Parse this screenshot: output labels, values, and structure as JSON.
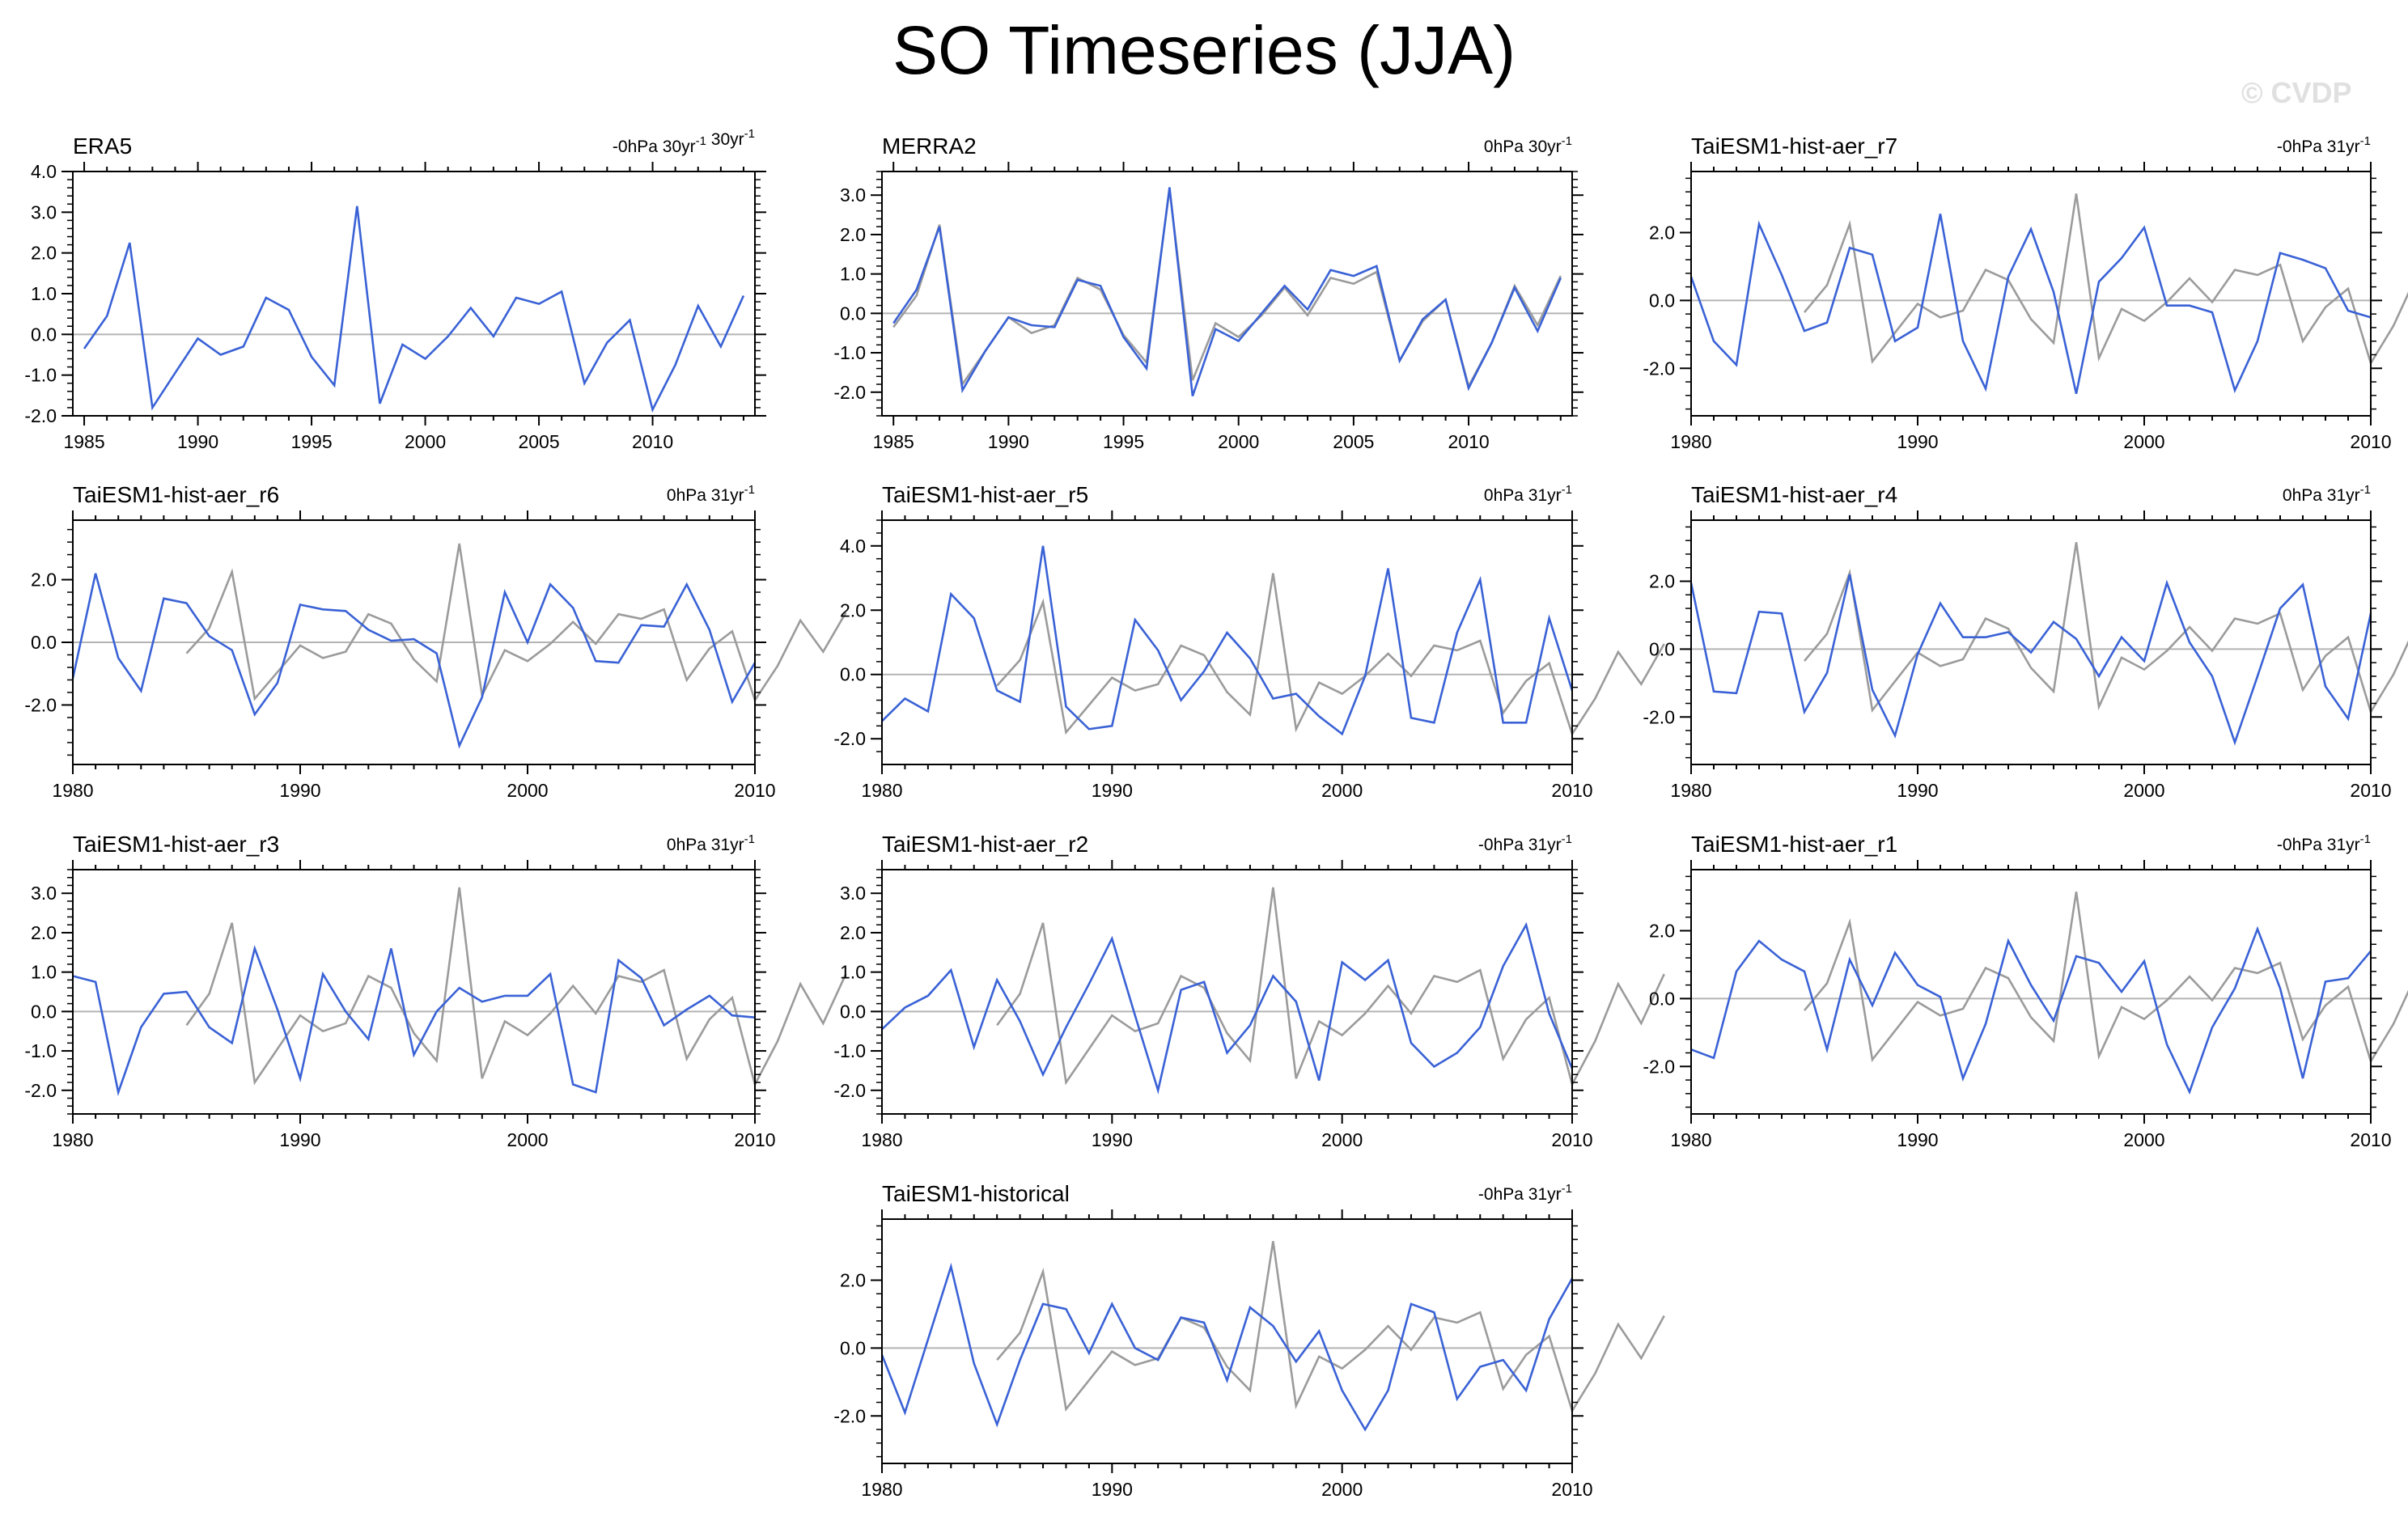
{
  "figure": {
    "title": "SO Timeseries (JJA)",
    "watermark": "© CVDP",
    "colors": {
      "model_line": "#3a62d6",
      "obs_line": "#9b9b9b",
      "zero_line": "#b4b4b4",
      "axis": "#000000"
    }
  },
  "chart_data": [
    {
      "type": "line",
      "title": "ERA5",
      "subtitle": "-0hPa 30yr",
      "subtitle2": "30yr",
      "xlim": [
        1984.5,
        2014.5
      ],
      "ylim": [
        -2.0,
        4.0
      ],
      "xticks": [
        1985,
        1990,
        1995,
        2000,
        2005,
        2010
      ],
      "yticks": [
        -2,
        -1,
        0,
        1,
        2,
        3,
        4
      ],
      "ytick_labels": [
        "-2.0",
        "-1.0",
        "0.0",
        "1.0",
        "2.0",
        "3.0",
        "4.0"
      ],
      "series": [
        {
          "name": "ERA5",
          "color": "#3a62d6",
          "x_start": 1985,
          "values": [
            -0.35,
            0.45,
            2.25,
            -1.8,
            -0.95,
            -0.1,
            -0.5,
            -0.3,
            0.9,
            0.6,
            -0.55,
            -1.25,
            3.15,
            -1.7,
            -0.25,
            -0.6,
            -0.05,
            0.65,
            -0.05,
            0.9,
            0.75,
            1.05,
            -1.2,
            -0.2,
            0.35,
            -1.85,
            -0.75,
            0.7,
            -0.3,
            0.95
          ]
        }
      ]
    },
    {
      "type": "line",
      "title": "MERRA2",
      "subtitle": "0hPa 30yr",
      "subtitle2": "",
      "xlim": [
        1984.5,
        2014.5
      ],
      "ylim": [
        -2.6,
        3.6
      ],
      "xticks": [
        1985,
        1990,
        1995,
        2000,
        2005,
        2010
      ],
      "yticks": [
        -2,
        -1,
        0,
        1,
        2,
        3
      ],
      "ytick_labels": [
        "-2.0",
        "-1.0",
        "0.0",
        "1.0",
        "2.0",
        "3.0"
      ],
      "series": [
        {
          "name": "ERA5",
          "color": "#9b9b9b",
          "x_start": 1985,
          "values": [
            -0.35,
            0.45,
            2.25,
            -1.8,
            -0.95,
            -0.1,
            -0.5,
            -0.3,
            0.9,
            0.6,
            -0.55,
            -1.25,
            3.15,
            -1.7,
            -0.25,
            -0.6,
            -0.05,
            0.65,
            -0.05,
            0.9,
            0.75,
            1.05,
            -1.2,
            -0.2,
            0.35,
            -1.85,
            -0.75,
            0.7,
            -0.3,
            0.95
          ]
        },
        {
          "name": "MERRA2",
          "color": "#3a62d6",
          "x_start": 1985,
          "values": [
            -0.25,
            0.6,
            2.2,
            -1.95,
            -0.95,
            -0.1,
            -0.3,
            -0.35,
            0.85,
            0.7,
            -0.6,
            -1.4,
            3.2,
            -2.1,
            -0.4,
            -0.7,
            0.0,
            0.7,
            0.1,
            1.1,
            0.95,
            1.2,
            -1.2,
            -0.15,
            0.35,
            -1.9,
            -0.75,
            0.65,
            -0.45,
            0.9
          ]
        }
      ]
    },
    {
      "type": "line",
      "title": "TaiESM1-hist-aer_r7",
      "subtitle": "-0hPa 31yr",
      "subtitle2": "",
      "xlim": [
        1980,
        2010
      ],
      "ylim": [
        -3.4,
        3.8
      ],
      "xticks": [
        1980,
        1990,
        2000,
        2010
      ],
      "yticks": [
        -2,
        0,
        2
      ],
      "ytick_labels": [
        "-2.0",
        "0.0",
        "2.0"
      ],
      "series": [
        {
          "name": "ERA5",
          "color": "#9b9b9b",
          "x_start": 1985,
          "values": [
            -0.35,
            0.45,
            2.25,
            -1.8,
            -0.95,
            -0.1,
            -0.5,
            -0.3,
            0.9,
            0.6,
            -0.55,
            -1.25,
            3.15,
            -1.7,
            -0.25,
            -0.6,
            -0.05,
            0.65,
            -0.05,
            0.9,
            0.75,
            1.05,
            -1.2,
            -0.2,
            0.35,
            -1.85,
            -0.75,
            0.7,
            -0.3,
            0.95
          ]
        },
        {
          "name": "TaiESM1-hist-aer_r7",
          "color": "#3a62d6",
          "x_start": 1980,
          "values": [
            0.7,
            -1.2,
            -1.9,
            2.25,
            0.75,
            -0.9,
            -0.65,
            1.55,
            1.35,
            -1.2,
            -0.8,
            2.55,
            -1.2,
            -2.6,
            0.7,
            2.1,
            0.25,
            -2.75,
            0.55,
            1.25,
            2.15,
            -0.15,
            -0.15,
            -0.35,
            -2.65,
            -1.2,
            1.4,
            1.2,
            0.95,
            -0.3,
            -0.5
          ]
        }
      ]
    },
    {
      "type": "line",
      "title": "TaiESM1-hist-aer_r6",
      "subtitle": "0hPa 31yr",
      "subtitle2": "",
      "xlim": [
        1980,
        2010
      ],
      "ylim": [
        -3.9,
        3.9
      ],
      "xticks": [
        1980,
        1990,
        2000,
        2010
      ],
      "yticks": [
        -2,
        0,
        2
      ],
      "ytick_labels": [
        "-2.0",
        "0.0",
        "2.0"
      ],
      "series": [
        {
          "name": "ERA5",
          "color": "#9b9b9b",
          "x_start": 1985,
          "values": [
            -0.35,
            0.45,
            2.25,
            -1.8,
            -0.95,
            -0.1,
            -0.5,
            -0.3,
            0.9,
            0.6,
            -0.55,
            -1.25,
            3.15,
            -1.7,
            -0.25,
            -0.6,
            -0.05,
            0.65,
            -0.05,
            0.9,
            0.75,
            1.05,
            -1.2,
            -0.2,
            0.35,
            -1.85,
            -0.75,
            0.7,
            -0.3,
            0.95
          ]
        },
        {
          "name": "TaiESM1-hist-aer_r6",
          "color": "#3a62d6",
          "x_start": 1980,
          "values": [
            -1.15,
            2.2,
            -0.5,
            -1.55,
            1.4,
            1.25,
            0.2,
            -0.25,
            -2.3,
            -1.3,
            1.2,
            1.05,
            1.0,
            0.4,
            0.05,
            0.1,
            -0.35,
            -3.3,
            -1.75,
            1.6,
            0.0,
            1.85,
            1.1,
            -0.6,
            -0.65,
            0.55,
            0.5,
            1.85,
            0.4,
            -1.9,
            -0.65
          ]
        }
      ]
    },
    {
      "type": "line",
      "title": "TaiESM1-hist-aer_r5",
      "subtitle": "0hPa 31yr",
      "subtitle2": "",
      "xlim": [
        1980,
        2010
      ],
      "ylim": [
        -2.8,
        4.8
      ],
      "xticks": [
        1980,
        1990,
        2000,
        2010
      ],
      "yticks": [
        -2,
        0,
        2,
        4
      ],
      "ytick_labels": [
        "-2.0",
        "0.0",
        "2.0",
        "4.0"
      ],
      "series": [
        {
          "name": "ERA5",
          "color": "#9b9b9b",
          "x_start": 1985,
          "values": [
            -0.35,
            0.45,
            2.25,
            -1.8,
            -0.95,
            -0.1,
            -0.5,
            -0.3,
            0.9,
            0.6,
            -0.55,
            -1.25,
            3.15,
            -1.7,
            -0.25,
            -0.6,
            -0.05,
            0.65,
            -0.05,
            0.9,
            0.75,
            1.05,
            -1.2,
            -0.2,
            0.35,
            -1.85,
            -0.75,
            0.7,
            -0.3,
            0.95
          ]
        },
        {
          "name": "TaiESM1-hist-aer_r5",
          "color": "#3a62d6",
          "x_start": 1980,
          "values": [
            -1.45,
            -0.75,
            -1.15,
            2.5,
            1.75,
            -0.5,
            -0.85,
            4.0,
            -1.0,
            -1.7,
            -1.6,
            1.7,
            0.75,
            -0.8,
            0.1,
            1.3,
            0.5,
            -0.75,
            -0.6,
            -1.3,
            -1.85,
            -0.05,
            3.3,
            -1.35,
            -1.5,
            1.3,
            2.95,
            -1.5,
            -1.5,
            1.75,
            -0.5
          ]
        }
      ]
    },
    {
      "type": "line",
      "title": "TaiESM1-hist-aer_r4",
      "subtitle": "0hPa 31yr",
      "subtitle2": "",
      "xlim": [
        1980,
        2010
      ],
      "ylim": [
        -3.4,
        3.8
      ],
      "xticks": [
        1980,
        1990,
        2000,
        2010
      ],
      "yticks": [
        -2,
        0,
        2
      ],
      "ytick_labels": [
        "-2.0",
        "0.0",
        "2.0"
      ],
      "series": [
        {
          "name": "ERA5",
          "color": "#9b9b9b",
          "x_start": 1985,
          "values": [
            -0.35,
            0.45,
            2.25,
            -1.8,
            -0.95,
            -0.1,
            -0.5,
            -0.3,
            0.9,
            0.6,
            -0.55,
            -1.25,
            3.15,
            -1.7,
            -0.25,
            -0.6,
            -0.05,
            0.65,
            -0.05,
            0.9,
            0.75,
            1.05,
            -1.2,
            -0.2,
            0.35,
            -1.85,
            -0.75,
            0.7,
            -0.3,
            0.95
          ]
        },
        {
          "name": "TaiESM1-hist-aer_r4",
          "color": "#3a62d6",
          "x_start": 1980,
          "values": [
            1.95,
            -1.25,
            -1.3,
            1.1,
            1.05,
            -1.85,
            -0.7,
            2.2,
            -1.2,
            -2.55,
            -0.15,
            1.35,
            0.35,
            0.35,
            0.5,
            -0.1,
            0.8,
            0.3,
            -0.8,
            0.35,
            -0.35,
            1.95,
            0.2,
            -0.8,
            -2.75,
            -0.8,
            1.2,
            1.9,
            -1.1,
            -2.05,
            1.05
          ]
        }
      ]
    },
    {
      "type": "line",
      "title": "TaiESM1-hist-aer_r3",
      "subtitle": "0hPa 31yr",
      "subtitle2": "",
      "xlim": [
        1980,
        2010
      ],
      "ylim": [
        -2.6,
        3.6
      ],
      "xticks": [
        1980,
        1990,
        2000,
        2010
      ],
      "yticks": [
        -2,
        -1,
        0,
        1,
        2,
        3
      ],
      "ytick_labels": [
        "-2.0",
        "-1.0",
        "0.0",
        "1.0",
        "2.0",
        "3.0"
      ],
      "series": [
        {
          "name": "ERA5",
          "color": "#9b9b9b",
          "x_start": 1985,
          "values": [
            -0.35,
            0.45,
            2.25,
            -1.8,
            -0.95,
            -0.1,
            -0.5,
            -0.3,
            0.9,
            0.6,
            -0.55,
            -1.25,
            3.15,
            -1.7,
            -0.25,
            -0.6,
            -0.05,
            0.65,
            -0.05,
            0.9,
            0.75,
            1.05,
            -1.2,
            -0.2,
            0.35,
            -1.85,
            -0.75,
            0.7,
            -0.3,
            0.95
          ]
        },
        {
          "name": "TaiESM1-hist-aer_r3",
          "color": "#3a62d6",
          "x_start": 1980,
          "values": [
            0.9,
            0.75,
            -2.05,
            -0.4,
            0.45,
            0.5,
            -0.4,
            -0.8,
            1.6,
            0.05,
            -1.7,
            0.95,
            0.0,
            -0.7,
            1.6,
            -1.1,
            0.0,
            0.6,
            0.25,
            0.4,
            0.4,
            0.95,
            -1.85,
            -2.05,
            1.3,
            0.85,
            -0.35,
            0.05,
            0.4,
            -0.1,
            -0.15
          ]
        }
      ]
    },
    {
      "type": "line",
      "title": "TaiESM1-hist-aer_r2",
      "subtitle": "-0hPa 31yr",
      "subtitle2": "",
      "xlim": [
        1980,
        2010
      ],
      "ylim": [
        -2.6,
        3.6
      ],
      "xticks": [
        1980,
        1990,
        2000,
        2010
      ],
      "yticks": [
        -2,
        -1,
        0,
        1,
        2,
        3
      ],
      "ytick_labels": [
        "-2.0",
        "-1.0",
        "0.0",
        "1.0",
        "2.0",
        "3.0"
      ],
      "series": [
        {
          "name": "ERA5",
          "color": "#9b9b9b",
          "x_start": 1985,
          "values": [
            -0.35,
            0.45,
            2.25,
            -1.8,
            -0.95,
            -0.1,
            -0.5,
            -0.3,
            0.9,
            0.6,
            -0.55,
            -1.25,
            3.15,
            -1.7,
            -0.25,
            -0.6,
            -0.05,
            0.65,
            -0.05,
            0.9,
            0.75,
            1.05,
            -1.2,
            -0.2,
            0.35,
            -1.85,
            -0.75,
            0.7,
            -0.3,
            0.95
          ]
        },
        {
          "name": "TaiESM1-hist-aer_r2",
          "color": "#3a62d6",
          "x_start": 1980,
          "values": [
            -0.45,
            0.1,
            0.4,
            1.05,
            -0.9,
            0.8,
            -0.25,
            -1.6,
            -0.4,
            0.7,
            1.85,
            -0.1,
            -2.0,
            0.55,
            0.75,
            -1.05,
            -0.35,
            0.9,
            0.25,
            -1.75,
            1.25,
            0.8,
            1.3,
            -0.8,
            -1.4,
            -1.05,
            -0.4,
            1.15,
            2.2,
            -0.05,
            -1.45
          ]
        }
      ]
    },
    {
      "type": "line",
      "title": "TaiESM1-hist-aer_r1",
      "subtitle": "-0hPa 31yr",
      "subtitle2": "",
      "xlim": [
        1980,
        2010
      ],
      "ylim": [
        -3.4,
        3.8
      ],
      "xticks": [
        1980,
        1990,
        2000,
        2010
      ],
      "yticks": [
        -2,
        0,
        2
      ],
      "ytick_labels": [
        "-2.0",
        "0.0",
        "2.0"
      ],
      "series": [
        {
          "name": "ERA5",
          "color": "#9b9b9b",
          "x_start": 1985,
          "values": [
            -0.35,
            0.45,
            2.25,
            -1.8,
            -0.95,
            -0.1,
            -0.5,
            -0.3,
            0.9,
            0.6,
            -0.55,
            -1.25,
            3.15,
            -1.7,
            -0.25,
            -0.6,
            -0.05,
            0.65,
            -0.05,
            0.9,
            0.75,
            1.05,
            -1.2,
            -0.2,
            0.35,
            -1.85,
            -0.75,
            0.7,
            -0.3,
            0.95
          ]
        },
        {
          "name": "TaiESM1-hist-aer_r1",
          "color": "#3a62d6",
          "x_start": 1980,
          "values": [
            -1.5,
            -1.75,
            0.8,
            1.7,
            1.15,
            0.8,
            -1.5,
            1.15,
            -0.2,
            1.35,
            0.4,
            0.05,
            -2.35,
            -0.75,
            1.7,
            0.4,
            -0.65,
            1.25,
            1.05,
            0.2,
            1.1,
            -1.35,
            -2.75,
            -0.85,
            0.3,
            2.05,
            0.3,
            -2.35,
            0.5,
            0.6,
            1.4
          ]
        }
      ]
    },
    {
      "type": "line",
      "title": "TaiESM1-historical",
      "subtitle": "-0hPa 31yr",
      "subtitle2": "",
      "xlim": [
        1980,
        2010
      ],
      "ylim": [
        -3.4,
        3.8
      ],
      "xticks": [
        1980,
        1990,
        2000,
        2010
      ],
      "yticks": [
        -2,
        0,
        2
      ],
      "ytick_labels": [
        "-2.0",
        "0.0",
        "2.0"
      ],
      "series": [
        {
          "name": "ERA5",
          "color": "#9b9b9b",
          "x_start": 1985,
          "values": [
            -0.35,
            0.45,
            2.25,
            -1.8,
            -0.95,
            -0.1,
            -0.5,
            -0.3,
            0.9,
            0.6,
            -0.55,
            -1.25,
            3.15,
            -1.7,
            -0.25,
            -0.6,
            -0.05,
            0.65,
            -0.05,
            0.9,
            0.75,
            1.05,
            -1.2,
            -0.2,
            0.35,
            -1.85,
            -0.75,
            0.7,
            -0.3,
            0.95
          ]
        },
        {
          "name": "TaiESM1-historical",
          "color": "#3a62d6",
          "x_start": 1980,
          "values": [
            -0.2,
            -1.9,
            0.25,
            2.4,
            -0.45,
            -2.25,
            -0.35,
            1.3,
            1.15,
            -0.15,
            1.3,
            0.0,
            -0.35,
            0.9,
            0.75,
            -0.95,
            1.2,
            0.65,
            -0.4,
            0.5,
            -1.25,
            -2.4,
            -1.25,
            1.3,
            1.05,
            -1.5,
            -0.55,
            -0.35,
            -1.25,
            0.85,
            2.05
          ]
        }
      ]
    }
  ]
}
